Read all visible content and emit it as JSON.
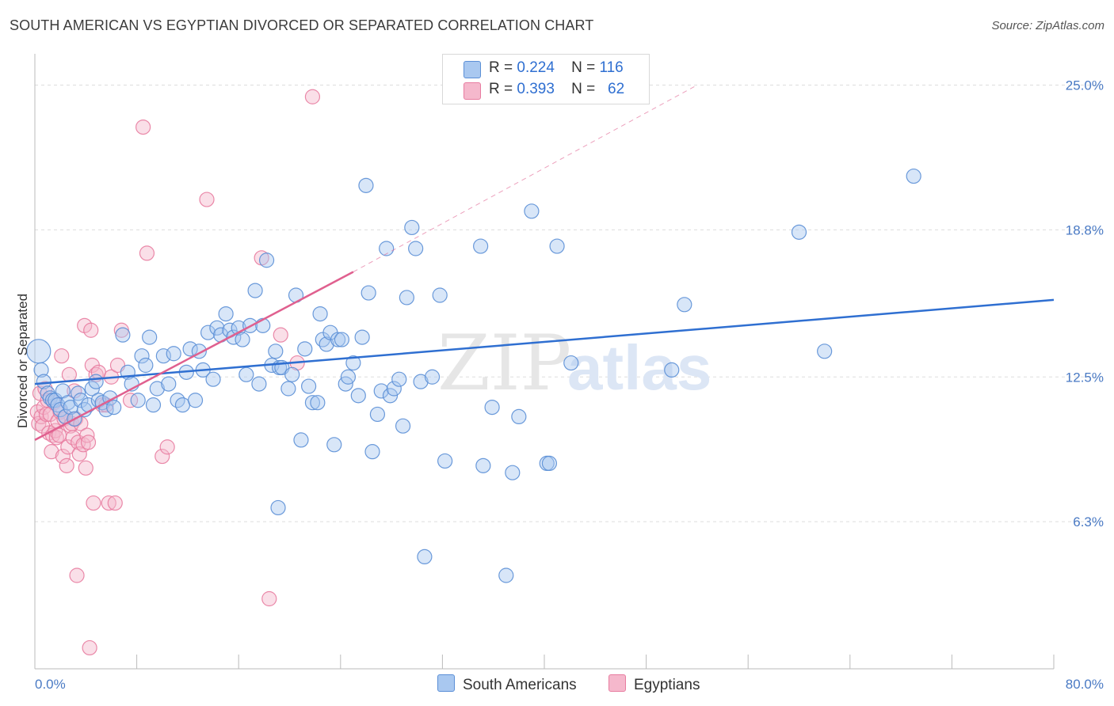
{
  "title": "SOUTH AMERICAN VS EGYPTIAN DIVORCED OR SEPARATED CORRELATION CHART",
  "source": "Source: ZipAtlas.com",
  "watermark": {
    "zip": "ZIP",
    "atlas": "atlas"
  },
  "legend": {
    "rows": [
      {
        "r_label": "R =",
        "r_value": "0.224",
        "n_label": "N =",
        "n_value": "116"
      },
      {
        "r_label": "R =",
        "r_value": "0.393",
        "n_label": "N =",
        "n_value": "62"
      }
    ]
  },
  "colors": {
    "blue_fill": "#a9c8f0",
    "blue_stroke": "#5b8fd6",
    "blue_line": "#2f6fd1",
    "pink_fill": "#f5b8cc",
    "pink_stroke": "#e87ca0",
    "pink_line": "#e0608f",
    "grid": "#dddddd",
    "tick_text": "#4a7ac4"
  },
  "chart_data": {
    "type": "scatter",
    "title": "SOUTH AMERICAN VS EGYPTIAN DIVORCED OR SEPARATED CORRELATION CHART",
    "xlabel": "",
    "ylabel": "Divorced or Separated",
    "xlim": [
      0,
      80
    ],
    "ylim": [
      0,
      26
    ],
    "x_tick_labels": [
      "0.0%",
      "80.0%"
    ],
    "y_ticks": [
      6.3,
      12.5,
      18.8,
      25.0
    ],
    "y_tick_labels": [
      "6.3%",
      "12.5%",
      "18.8%",
      "25.0%"
    ],
    "grid": true,
    "legend_position": "bottom",
    "series": [
      {
        "name": "South Americans",
        "r": 0.224,
        "n": 116,
        "trend": {
          "x": [
            0,
            80
          ],
          "y": [
            12.2,
            15.8
          ],
          "dashed_extension": false
        },
        "points": [
          [
            0.3,
            13.6
          ],
          [
            0.5,
            12.8
          ],
          [
            0.7,
            12.3
          ],
          [
            1.0,
            11.8
          ],
          [
            1.2,
            11.6
          ],
          [
            1.4,
            11.5
          ],
          [
            1.6,
            11.5
          ],
          [
            1.8,
            11.3
          ],
          [
            2.0,
            11.1
          ],
          [
            2.2,
            11.9
          ],
          [
            2.4,
            10.8
          ],
          [
            2.6,
            11.4
          ],
          [
            2.8,
            11.2
          ],
          [
            3.1,
            10.7
          ],
          [
            3.4,
            11.8
          ],
          [
            3.6,
            11.5
          ],
          [
            3.9,
            11.1
          ],
          [
            4.2,
            11.3
          ],
          [
            4.5,
            12.0
          ],
          [
            4.8,
            12.3
          ],
          [
            5.0,
            11.5
          ],
          [
            5.3,
            11.4
          ],
          [
            5.6,
            11.1
          ],
          [
            5.9,
            11.6
          ],
          [
            6.2,
            11.2
          ],
          [
            6.9,
            14.3
          ],
          [
            7.3,
            12.7
          ],
          [
            7.6,
            12.2
          ],
          [
            8.1,
            11.5
          ],
          [
            8.4,
            13.4
          ],
          [
            8.7,
            13.0
          ],
          [
            9.0,
            14.2
          ],
          [
            9.3,
            11.3
          ],
          [
            9.6,
            12.0
          ],
          [
            10.1,
            13.4
          ],
          [
            10.5,
            12.2
          ],
          [
            10.9,
            13.5
          ],
          [
            11.2,
            11.5
          ],
          [
            11.6,
            11.3
          ],
          [
            11.9,
            12.7
          ],
          [
            12.2,
            13.7
          ],
          [
            12.6,
            11.5
          ],
          [
            12.9,
            13.6
          ],
          [
            13.2,
            12.8
          ],
          [
            13.6,
            14.4
          ],
          [
            14.0,
            12.4
          ],
          [
            14.3,
            14.6
          ],
          [
            14.6,
            14.3
          ],
          [
            15.0,
            15.2
          ],
          [
            15.3,
            14.5
          ],
          [
            15.6,
            14.2
          ],
          [
            16.0,
            14.6
          ],
          [
            16.3,
            14.1
          ],
          [
            16.6,
            12.6
          ],
          [
            16.9,
            14.7
          ],
          [
            17.3,
            16.2
          ],
          [
            17.6,
            12.2
          ],
          [
            17.9,
            14.7
          ],
          [
            18.2,
            17.5
          ],
          [
            18.6,
            13.0
          ],
          [
            18.9,
            13.6
          ],
          [
            19.2,
            12.9
          ],
          [
            19.4,
            12.9
          ],
          [
            19.1,
            6.9
          ],
          [
            19.9,
            12.0
          ],
          [
            20.2,
            12.6
          ],
          [
            20.5,
            16.0
          ],
          [
            20.9,
            9.8
          ],
          [
            21.2,
            13.7
          ],
          [
            21.5,
            12.1
          ],
          [
            21.8,
            11.4
          ],
          [
            22.2,
            11.4
          ],
          [
            22.4,
            15.2
          ],
          [
            22.6,
            14.1
          ],
          [
            22.9,
            13.9
          ],
          [
            23.2,
            14.4
          ],
          [
            23.5,
            9.6
          ],
          [
            23.8,
            14.1
          ],
          [
            24.1,
            14.1
          ],
          [
            24.4,
            12.2
          ],
          [
            24.6,
            12.5
          ],
          [
            25.0,
            13.1
          ],
          [
            25.4,
            11.7
          ],
          [
            25.7,
            14.2
          ],
          [
            26.0,
            20.7
          ],
          [
            26.2,
            16.1
          ],
          [
            26.5,
            9.3
          ],
          [
            26.9,
            10.9
          ],
          [
            27.2,
            11.9
          ],
          [
            27.6,
            18.0
          ],
          [
            27.9,
            11.7
          ],
          [
            28.2,
            12.0
          ],
          [
            28.6,
            12.4
          ],
          [
            28.9,
            10.4
          ],
          [
            29.2,
            15.9
          ],
          [
            29.6,
            18.9
          ],
          [
            29.9,
            18.0
          ],
          [
            30.3,
            12.3
          ],
          [
            30.6,
            4.8
          ],
          [
            31.2,
            12.5
          ],
          [
            31.8,
            16.0
          ],
          [
            32.2,
            8.9
          ],
          [
            35.0,
            18.1
          ],
          [
            35.2,
            8.7
          ],
          [
            35.9,
            11.2
          ],
          [
            37.5,
            8.4
          ],
          [
            38.0,
            10.8
          ],
          [
            39.0,
            19.6
          ],
          [
            40.2,
            8.8
          ],
          [
            40.4,
            8.8
          ],
          [
            41.0,
            18.1
          ],
          [
            42.1,
            13.1
          ],
          [
            50.0,
            12.8
          ],
          [
            51.0,
            15.6
          ],
          [
            60.0,
            18.7
          ],
          [
            62.0,
            13.6
          ],
          [
            69.0,
            21.1
          ],
          [
            37.0,
            4.0
          ]
        ]
      },
      {
        "name": "Egyptians",
        "r": 0.393,
        "n": 62,
        "trend": {
          "x": [
            0,
            25
          ],
          "y": [
            9.8,
            17.0
          ],
          "dashed_extension": true,
          "extension_x": [
            25,
            52
          ],
          "extension_y": [
            17.0,
            25.0
          ]
        },
        "points": [
          [
            0.2,
            11.0
          ],
          [
            0.3,
            10.5
          ],
          [
            0.4,
            11.8
          ],
          [
            0.5,
            10.8
          ],
          [
            0.6,
            10.4
          ],
          [
            0.7,
            11.2
          ],
          [
            0.8,
            12.0
          ],
          [
            0.9,
            10.9
          ],
          [
            1.0,
            11.5
          ],
          [
            1.1,
            10.1
          ],
          [
            1.2,
            10.9
          ],
          [
            1.3,
            9.3
          ],
          [
            1.4,
            10.0
          ],
          [
            1.5,
            11.4
          ],
          [
            1.6,
            10.2
          ],
          [
            1.7,
            9.9
          ],
          [
            1.8,
            10.6
          ],
          [
            1.9,
            10.0
          ],
          [
            2.0,
            11.0
          ],
          [
            2.1,
            13.4
          ],
          [
            2.2,
            9.1
          ],
          [
            2.3,
            10.7
          ],
          [
            2.4,
            10.8
          ],
          [
            2.5,
            8.7
          ],
          [
            2.6,
            9.5
          ],
          [
            2.7,
            12.6
          ],
          [
            2.8,
            10.4
          ],
          [
            2.9,
            10.5
          ],
          [
            3.0,
            9.9
          ],
          [
            3.1,
            11.9
          ],
          [
            3.2,
            10.7
          ],
          [
            3.3,
            4.0
          ],
          [
            3.4,
            9.7
          ],
          [
            3.5,
            9.2
          ],
          [
            3.6,
            10.5
          ],
          [
            3.8,
            9.6
          ],
          [
            3.9,
            14.7
          ],
          [
            4.0,
            8.6
          ],
          [
            4.1,
            10.0
          ],
          [
            4.2,
            9.7
          ],
          [
            4.4,
            14.5
          ],
          [
            4.5,
            13.0
          ],
          [
            4.6,
            7.1
          ],
          [
            4.8,
            12.6
          ],
          [
            5.0,
            12.7
          ],
          [
            5.3,
            11.3
          ],
          [
            5.6,
            11.3
          ],
          [
            5.8,
            7.1
          ],
          [
            6.0,
            12.5
          ],
          [
            6.3,
            7.1
          ],
          [
            6.5,
            13.0
          ],
          [
            6.8,
            14.5
          ],
          [
            7.5,
            11.5
          ],
          [
            8.5,
            23.2
          ],
          [
            8.8,
            17.8
          ],
          [
            10.0,
            9.1
          ],
          [
            10.4,
            9.5
          ],
          [
            13.5,
            20.1
          ],
          [
            17.8,
            17.6
          ],
          [
            19.3,
            14.3
          ],
          [
            20.6,
            13.1
          ],
          [
            21.8,
            24.5
          ]
        ],
        "extra_points": [
          [
            18.4,
            3.0
          ],
          [
            4.3,
            0.9
          ]
        ]
      }
    ]
  }
}
